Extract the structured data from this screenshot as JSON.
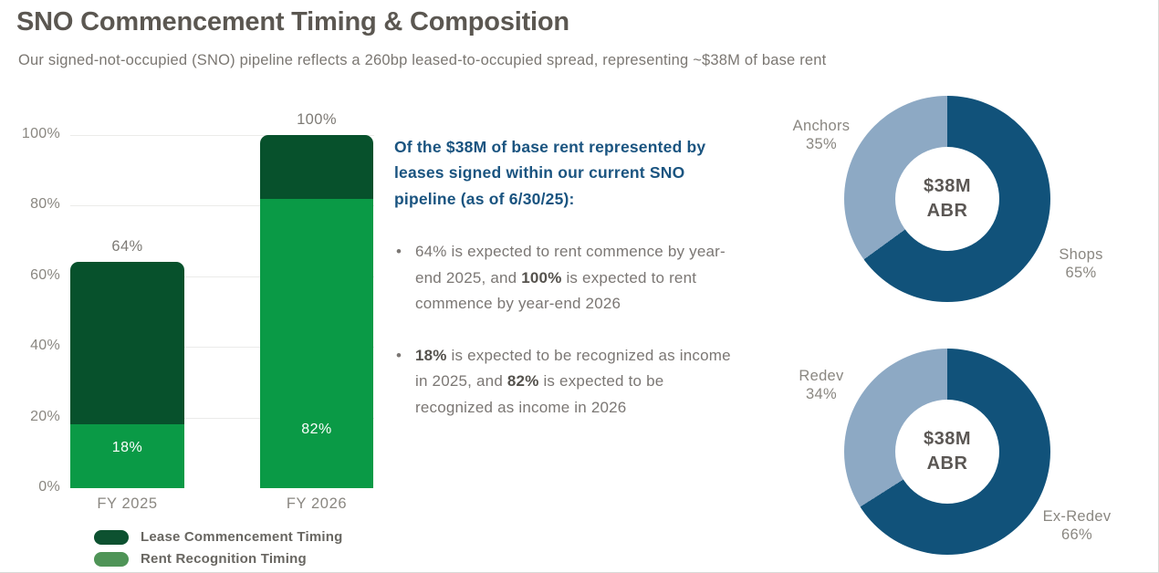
{
  "header": {
    "title": "SNO Commencement Timing & Composition",
    "subtitle": "Our signed-not-occupied (SNO) pipeline reflects a 260bp leased-to-occupied spread, representing ~$38M of base rent"
  },
  "text_panel": {
    "heading": "Of the $38M of base rent represented by leases signed within our current SNO pipeline (as of 6/30/25):",
    "bullet1": {
      "t1": "64% is expected to rent commence by year-end 2025, and ",
      "b1": "100%",
      "t2": " is expected to rent commence by year-end 2026"
    },
    "bullet2": {
      "b1": "18%",
      "t1": " is expected to be recognized as income in 2025, and ",
      "b2": "82%",
      "t2": " is expected to be recognized as income in 2026"
    }
  },
  "chart_data": [
    {
      "type": "bar",
      "stacked": true,
      "categories": [
        "FY 2025",
        "FY 2026"
      ],
      "series": [
        {
          "name": "Lease Commencement Timing",
          "values": [
            64,
            100
          ],
          "color": "#07512c"
        },
        {
          "name": "Rent Recognition Timing",
          "values": [
            18,
            82
          ],
          "color": "#0a9a46"
        }
      ],
      "total_labels": [
        "64%",
        "100%"
      ],
      "segment_labels": [
        "18%",
        "82%"
      ],
      "yticks": [
        {
          "label": "0%",
          "value": 0
        },
        {
          "label": "20%",
          "value": 20
        },
        {
          "label": "40%",
          "value": 40
        },
        {
          "label": "60%",
          "value": 60
        },
        {
          "label": "80%",
          "value": 80
        },
        {
          "label": "100%",
          "value": 100
        }
      ],
      "ylim": [
        0,
        100
      ],
      "grid": true,
      "legend_position": "bottom-left",
      "legend": [
        {
          "label": "Lease Commencement Timing",
          "color": "#0d5130"
        },
        {
          "label": "Rent Recognition Timing",
          "color": "#4f9457"
        }
      ]
    },
    {
      "type": "pie",
      "donut": true,
      "center_lines": [
        "$38M",
        "ABR"
      ],
      "slices": [
        {
          "label": "Shops",
          "value": 65,
          "value_label": "65%",
          "color": "#11527a"
        },
        {
          "label": "Anchors",
          "value": 35,
          "value_label": "35%",
          "color": "#8da9c4"
        }
      ]
    },
    {
      "type": "pie",
      "donut": true,
      "center_lines": [
        "$38M",
        "ABR"
      ],
      "slices": [
        {
          "label": "Ex-Redev",
          "value": 66,
          "value_label": "66%",
          "color": "#11527a"
        },
        {
          "label": "Redev",
          "value": 34,
          "value_label": "34%",
          "color": "#8da9c4"
        }
      ]
    }
  ]
}
